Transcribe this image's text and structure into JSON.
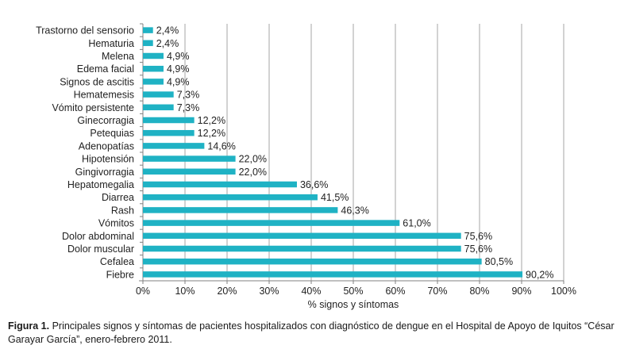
{
  "chart_data": {
    "type": "bar",
    "orientation": "horizontal",
    "categories": [
      "Trastorno del sensorio",
      "Hematuria",
      "Melena",
      "Edema facial",
      "Signos de ascitis",
      "Hematemesis",
      "Vómito persistente",
      "Ginecorragia",
      "Petequias",
      "Adenopatías",
      "Hipotensión",
      "Gingivorragia",
      "Hepatomegalia",
      "Diarrea",
      "Rash",
      "Vómitos",
      "Dolor abdominal",
      "Dolor muscular",
      "Cefalea",
      "Fiebre"
    ],
    "values": [
      2.4,
      2.4,
      4.9,
      4.9,
      4.9,
      7.3,
      7.3,
      12.2,
      12.2,
      14.6,
      22.0,
      22.0,
      36.6,
      41.5,
      46.3,
      61.0,
      75.6,
      75.6,
      80.5,
      90.2
    ],
    "value_labels": [
      "2,4%",
      "2,4%",
      "4,9%",
      "4,9%",
      "4,9%",
      "7,3%",
      "7,3%",
      "12,2%",
      "12,2%",
      "14,6%",
      "22,0%",
      "22,0%",
      "36,6%",
      "41,5%",
      "46,3%",
      "61,0%",
      "75,6%",
      "75,6%",
      "80,5%",
      "90,2%"
    ],
    "xlim": [
      0,
      100
    ],
    "xticks": [
      "0%",
      "10%",
      "20%",
      "30%",
      "40%",
      "50%",
      "60%",
      "70%",
      "80%",
      "90%",
      "100%"
    ],
    "xlabel": "% signos y síntomas",
    "ylabel": "",
    "grid": "vertical",
    "bar_color": "#1fb2c4",
    "grid_color": "#a6a6a6"
  },
  "caption": {
    "label": "Figura 1.",
    "text": " Principales signos y síntomas de pacientes hospitalizados con diagnóstico de dengue en el Hospital de Apoyo de Iquitos “César Garayar García”, enero-febrero 2011."
  }
}
